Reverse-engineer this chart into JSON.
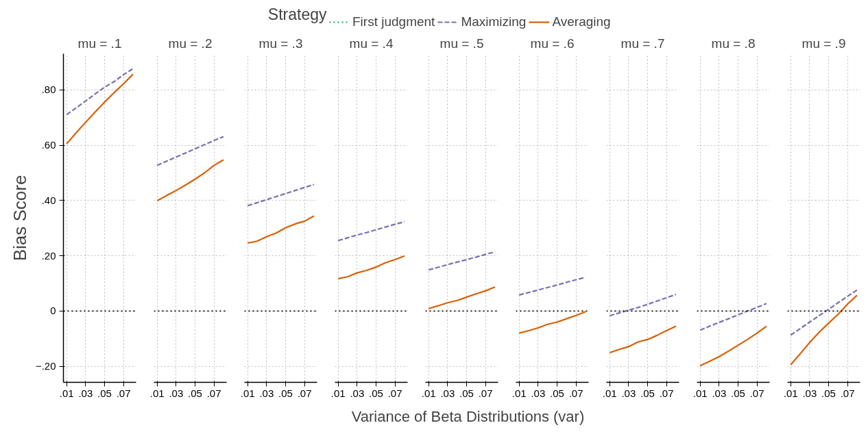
{
  "chart_data": [
    {
      "type": "line",
      "title": "mu = .1",
      "ylabel": "Bias Score",
      "legend": "top",
      "legend_title": "Strategy",
      "grid": true,
      "x": [
        0.01,
        0.02,
        0.03,
        0.04,
        0.05,
        0.06,
        0.07,
        0.08
      ],
      "xlim": [
        0.0066,
        0.0833
      ],
      "xticks": [
        {
          "value": 0.01,
          "label": ".01"
        },
        {
          "value": 0.03,
          "label": ".03"
        },
        {
          "value": 0.05,
          "label": ".05"
        },
        {
          "value": 0.07,
          "label": ".07"
        }
      ],
      "ylim": [
        -0.258,
        0.931
      ],
      "yticks": [
        {
          "value": -0.2,
          "label": "−.20"
        },
        0,
        {
          "value": 0.2,
          "label": ".20"
        },
        {
          "value": 0.4,
          "label": ".40"
        },
        {
          "value": 0.6,
          "label": ".60"
        },
        {
          "value": 0.8,
          "label": ".80"
        }
      ],
      "ref_lines": [
        {
          "axis": "y",
          "value": 0,
          "color": "#000000",
          "line_style": "dotted"
        }
      ],
      "series": [
        {
          "name": "First judgment",
          "color": "#1b9e77",
          "line_style": "dotted",
          "values": [
            null,
            null,
            null,
            null,
            null,
            null,
            null,
            null
          ]
        },
        {
          "name": "Maximizing",
          "color": "#7570b3",
          "line_style": "dashed",
          "values": [
            0.711,
            0.735,
            0.76,
            0.785,
            0.81,
            0.83,
            0.855,
            0.877
          ]
        },
        {
          "name": "Averaging",
          "color": "#d95f02",
          "line_style": "solid",
          "values": [
            0.605,
            0.645,
            0.683,
            0.72,
            0.756,
            0.79,
            0.822,
            0.857
          ]
        }
      ]
    },
    {
      "type": "line",
      "title": "mu = .2",
      "grid": true,
      "tick_labels": "x",
      "x": [
        0.01,
        0.02,
        0.03,
        0.04,
        0.05,
        0.06,
        0.07,
        0.08
      ],
      "xlim": [
        0.0066,
        0.0833
      ],
      "xticks": [
        {
          "value": 0.01,
          "label": ".01"
        },
        {
          "value": 0.03,
          "label": ".03"
        },
        {
          "value": 0.05,
          "label": ".05"
        },
        {
          "value": 0.07,
          "label": ".07"
        }
      ],
      "ylim": [
        -0.258,
        0.931
      ],
      "yticks": [
        -0.2,
        0,
        0.2,
        0.4,
        0.6,
        0.8
      ],
      "ref_lines": [
        {
          "axis": "y",
          "value": 0,
          "color": "#000000",
          "line_style": "dotted"
        }
      ],
      "series": [
        {
          "color": "#1b9e77",
          "line_style": "dotted",
          "values": [
            null,
            null,
            null,
            null,
            null,
            null,
            null,
            null
          ]
        },
        {
          "color": "#7570b3",
          "line_style": "dashed",
          "values": [
            0.527,
            0.542,
            0.557,
            0.572,
            0.587,
            0.602,
            0.617,
            0.631
          ]
        },
        {
          "color": "#d95f02",
          "line_style": "solid",
          "values": [
            0.399,
            0.418,
            0.436,
            0.456,
            0.477,
            0.5,
            0.527,
            0.547
          ]
        }
      ]
    },
    {
      "type": "line",
      "title": "mu = .3",
      "grid": true,
      "tick_labels": "x",
      "x": [
        0.01,
        0.02,
        0.03,
        0.04,
        0.05,
        0.06,
        0.07,
        0.08
      ],
      "xlim": [
        0.0066,
        0.0833
      ],
      "xticks": [
        {
          "value": 0.01,
          "label": ".01"
        },
        {
          "value": 0.03,
          "label": ".03"
        },
        {
          "value": 0.05,
          "label": ".05"
        },
        {
          "value": 0.07,
          "label": ".07"
        }
      ],
      "ylim": [
        -0.258,
        0.931
      ],
      "yticks": [
        -0.2,
        0,
        0.2,
        0.4,
        0.6,
        0.8
      ],
      "ref_lines": [
        {
          "axis": "y",
          "value": 0,
          "color": "#000000",
          "line_style": "dotted"
        }
      ],
      "series": [
        {
          "color": "#1b9e77",
          "line_style": "dotted",
          "values": [
            null,
            null,
            null,
            null,
            null,
            null,
            null,
            null
          ]
        },
        {
          "color": "#7570b3",
          "line_style": "dashed",
          "values": [
            0.381,
            0.392,
            0.403,
            0.414,
            0.425,
            0.436,
            0.447,
            0.458
          ]
        },
        {
          "color": "#d95f02",
          "line_style": "solid",
          "values": [
            0.246,
            0.253,
            0.269,
            0.282,
            0.301,
            0.315,
            0.325,
            0.344
          ]
        }
      ]
    },
    {
      "type": "line",
      "title": "mu = .4",
      "grid": true,
      "tick_labels": "x",
      "x": [
        0.01,
        0.02,
        0.03,
        0.04,
        0.05,
        0.06,
        0.07,
        0.08
      ],
      "xlim": [
        0.0066,
        0.0833
      ],
      "xticks": [
        {
          "value": 0.01,
          "label": ".01"
        },
        {
          "value": 0.03,
          "label": ".03"
        },
        {
          "value": 0.05,
          "label": ".05"
        },
        {
          "value": 0.07,
          "label": ".07"
        }
      ],
      "ylim": [
        -0.258,
        0.931
      ],
      "yticks": [
        -0.2,
        0,
        0.2,
        0.4,
        0.6,
        0.8
      ],
      "ref_lines": [
        {
          "axis": "y",
          "value": 0,
          "color": "#000000",
          "line_style": "dotted"
        }
      ],
      "series": [
        {
          "color": "#1b9e77",
          "line_style": "dotted",
          "values": [
            null,
            null,
            null,
            null,
            null,
            null,
            null,
            null
          ]
        },
        {
          "color": "#7570b3",
          "line_style": "dashed",
          "values": [
            0.255,
            0.265,
            0.275,
            0.284,
            0.294,
            0.304,
            0.314,
            0.323
          ]
        },
        {
          "color": "#d95f02",
          "line_style": "solid",
          "values": [
            0.117,
            0.124,
            0.138,
            0.147,
            0.159,
            0.175,
            0.186,
            0.199
          ]
        }
      ]
    },
    {
      "type": "line",
      "title": "mu = .5",
      "xlabel": "Variance of Beta Distributions (var)",
      "grid": true,
      "tick_labels": "x",
      "x": [
        0.01,
        0.02,
        0.03,
        0.04,
        0.05,
        0.06,
        0.07,
        0.08
      ],
      "xlim": [
        0.0066,
        0.0833
      ],
      "xticks": [
        {
          "value": 0.01,
          "label": ".01"
        },
        {
          "value": 0.03,
          "label": ".03"
        },
        {
          "value": 0.05,
          "label": ".05"
        },
        {
          "value": 0.07,
          "label": ".07"
        }
      ],
      "ylim": [
        -0.258,
        0.931
      ],
      "yticks": [
        -0.2,
        0,
        0.2,
        0.4,
        0.6,
        0.8
      ],
      "ref_lines": [
        {
          "axis": "y",
          "value": 0,
          "color": "#000000",
          "line_style": "dotted"
        }
      ],
      "series": [
        {
          "color": "#1b9e77",
          "line_style": "dotted",
          "values": [
            null,
            null,
            null,
            null,
            null,
            null,
            null,
            null
          ]
        },
        {
          "color": "#7570b3",
          "line_style": "dashed",
          "values": [
            0.149,
            0.158,
            0.168,
            0.177,
            0.186,
            0.195,
            0.205,
            0.214
          ]
        },
        {
          "color": "#d95f02",
          "line_style": "solid",
          "values": [
            0.009,
            0.019,
            0.03,
            0.038,
            0.05,
            0.062,
            0.073,
            0.087
          ]
        }
      ]
    },
    {
      "type": "line",
      "title": "mu = .6",
      "grid": true,
      "tick_labels": "x",
      "x": [
        0.01,
        0.02,
        0.03,
        0.04,
        0.05,
        0.06,
        0.07,
        0.08
      ],
      "xlim": [
        0.0066,
        0.0833
      ],
      "xticks": [
        {
          "value": 0.01,
          "label": ".01"
        },
        {
          "value": 0.03,
          "label": ".03"
        },
        {
          "value": 0.05,
          "label": ".05"
        },
        {
          "value": 0.07,
          "label": ".07"
        }
      ],
      "ylim": [
        -0.258,
        0.931
      ],
      "yticks": [
        -0.2,
        0,
        0.2,
        0.4,
        0.6,
        0.8
      ],
      "ref_lines": [
        {
          "axis": "y",
          "value": 0,
          "color": "#000000",
          "line_style": "dotted"
        }
      ],
      "series": [
        {
          "color": "#1b9e77",
          "line_style": "dotted",
          "values": [
            null,
            null,
            null,
            null,
            null,
            null,
            null,
            null
          ]
        },
        {
          "color": "#7570b3",
          "line_style": "dashed",
          "values": [
            0.058,
            0.067,
            0.076,
            0.085,
            0.094,
            0.104,
            0.113,
            0.122
          ]
        },
        {
          "color": "#d95f02",
          "line_style": "solid",
          "values": [
            -0.08,
            -0.071,
            -0.061,
            -0.048,
            -0.04,
            -0.028,
            -0.016,
            -0.003
          ]
        }
      ]
    },
    {
      "type": "line",
      "title": "mu = .7",
      "grid": true,
      "tick_labels": "x",
      "x": [
        0.01,
        0.02,
        0.03,
        0.04,
        0.05,
        0.06,
        0.07,
        0.08
      ],
      "xlim": [
        0.0066,
        0.0833
      ],
      "xticks": [
        {
          "value": 0.01,
          "label": ".01"
        },
        {
          "value": 0.03,
          "label": ".03"
        },
        {
          "value": 0.05,
          "label": ".05"
        },
        {
          "value": 0.07,
          "label": ".07"
        }
      ],
      "ylim": [
        -0.258,
        0.931
      ],
      "yticks": [
        -0.2,
        0,
        0.2,
        0.4,
        0.6,
        0.8
      ],
      "ref_lines": [
        {
          "axis": "y",
          "value": 0,
          "color": "#000000",
          "line_style": "dotted"
        }
      ],
      "series": [
        {
          "color": "#1b9e77",
          "line_style": "dotted",
          "values": [
            null,
            null,
            null,
            null,
            null,
            null,
            null,
            null
          ]
        },
        {
          "color": "#7570b3",
          "line_style": "dashed",
          "values": [
            -0.017,
            -0.007,
            0.003,
            0.013,
            0.024,
            0.036,
            0.048,
            0.06
          ]
        },
        {
          "color": "#d95f02",
          "line_style": "solid",
          "values": [
            -0.151,
            -0.139,
            -0.129,
            -0.112,
            -0.103,
            -0.088,
            -0.071,
            -0.055
          ]
        }
      ]
    },
    {
      "type": "line",
      "title": "mu = .8",
      "grid": true,
      "tick_labels": "x",
      "x": [
        0.01,
        0.02,
        0.03,
        0.04,
        0.05,
        0.06,
        0.07,
        0.08
      ],
      "xlim": [
        0.0066,
        0.0833
      ],
      "xticks": [
        {
          "value": 0.01,
          "label": ".01"
        },
        {
          "value": 0.03,
          "label": ".03"
        },
        {
          "value": 0.05,
          "label": ".05"
        },
        {
          "value": 0.07,
          "label": ".07"
        }
      ],
      "ylim": [
        -0.258,
        0.931
      ],
      "yticks": [
        -0.2,
        0,
        0.2,
        0.4,
        0.6,
        0.8
      ],
      "ref_lines": [
        {
          "axis": "y",
          "value": 0,
          "color": "#000000",
          "line_style": "dotted"
        }
      ],
      "series": [
        {
          "color": "#1b9e77",
          "line_style": "dotted",
          "values": [
            null,
            null,
            null,
            null,
            null,
            null,
            null,
            null
          ]
        },
        {
          "color": "#7570b3",
          "line_style": "dashed",
          "values": [
            -0.069,
            -0.055,
            -0.041,
            -0.028,
            -0.014,
            0.0,
            0.013,
            0.027
          ]
        },
        {
          "color": "#d95f02",
          "line_style": "solid",
          "values": [
            -0.198,
            -0.182,
            -0.165,
            -0.145,
            -0.124,
            -0.103,
            -0.08,
            -0.055
          ]
        }
      ]
    },
    {
      "type": "line",
      "title": "mu = .9",
      "grid": true,
      "tick_labels": "x",
      "x": [
        0.01,
        0.02,
        0.03,
        0.04,
        0.05,
        0.06,
        0.07,
        0.08
      ],
      "xlim": [
        0.0066,
        0.0833
      ],
      "xticks": [
        {
          "value": 0.01,
          "label": ".01"
        },
        {
          "value": 0.03,
          "label": ".03"
        },
        {
          "value": 0.05,
          "label": ".05"
        },
        {
          "value": 0.07,
          "label": ".07"
        }
      ],
      "ylim": [
        -0.258,
        0.931
      ],
      "yticks": [
        -0.2,
        0,
        0.2,
        0.4,
        0.6,
        0.8
      ],
      "ref_lines": [
        {
          "axis": "y",
          "value": 0,
          "color": "#000000",
          "line_style": "dotted"
        }
      ],
      "series": [
        {
          "color": "#1b9e77",
          "line_style": "dotted",
          "values": [
            null,
            null,
            null,
            null,
            null,
            null,
            null,
            null
          ]
        },
        {
          "color": "#7570b3",
          "line_style": "dashed",
          "values": [
            -0.087,
            -0.064,
            -0.04,
            -0.017,
            0.006,
            0.03,
            0.053,
            0.076
          ]
        },
        {
          "color": "#d95f02",
          "line_style": "solid",
          "values": [
            -0.194,
            -0.155,
            -0.114,
            -0.077,
            -0.044,
            -0.012,
            0.025,
            0.057
          ]
        }
      ]
    }
  ]
}
